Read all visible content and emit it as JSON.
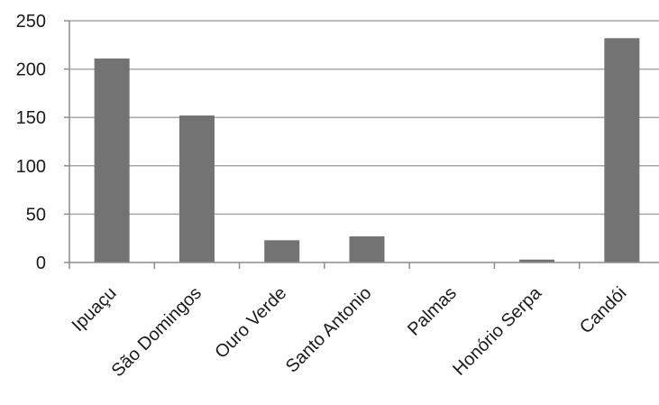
{
  "chart_data": {
    "type": "bar",
    "categories": [
      "Ipuaçu",
      "São Domingos",
      "Ouro Verde",
      "Santo Antonio",
      "Palmas",
      "Honório Serpa",
      "Candói"
    ],
    "values": [
      211,
      152,
      23,
      27,
      0,
      3,
      232
    ],
    "ylim": [
      0,
      250
    ],
    "yticks": [
      "0",
      "50",
      "100",
      "150",
      "200",
      "250"
    ],
    "grid": true,
    "bar_color": "#737373",
    "grid_color": "#a6a6a6",
    "axis_color": "#8c8c8c"
  }
}
